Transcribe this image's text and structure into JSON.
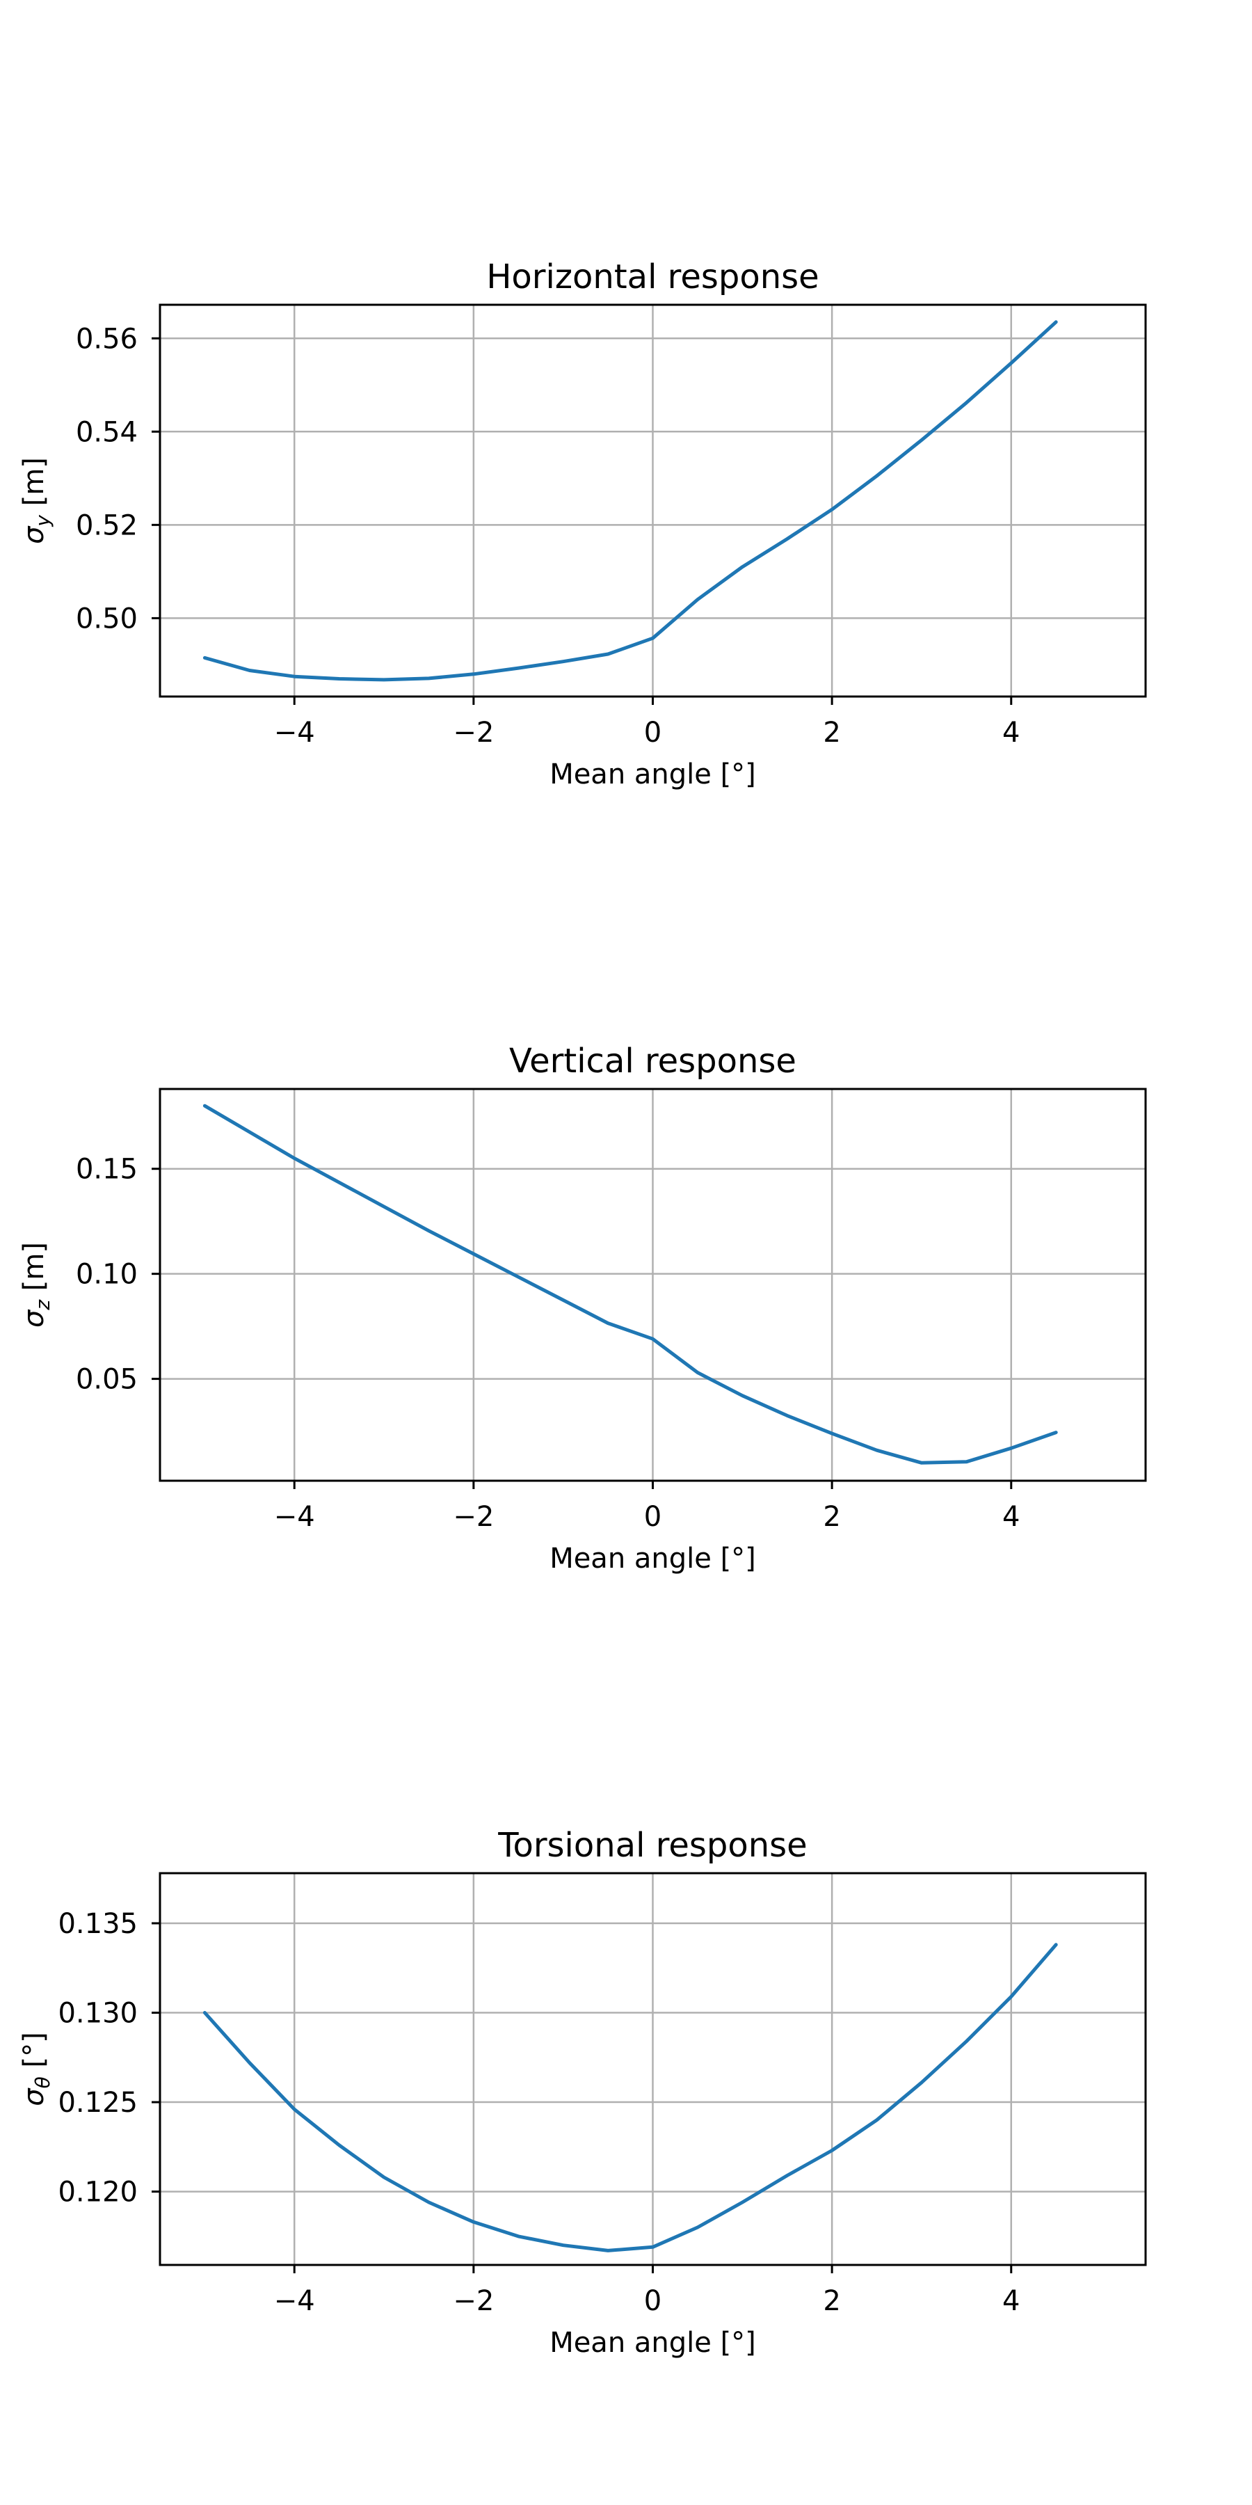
{
  "chart_data": [
    {
      "type": "line",
      "title": "Horizontal response",
      "xlabel": "Mean angle [°]",
      "ylabel": {
        "main": "σ",
        "sub": "y",
        "unit": " [m]"
      },
      "xlim": [
        -5.5,
        5.5
      ],
      "ylim": [
        0.4832,
        0.5672
      ],
      "xticks": [
        -4,
        -2,
        0,
        2,
        4
      ],
      "xtick_labels": [
        "−4",
        "−2",
        "0",
        "2",
        "4"
      ],
      "yticks": [
        0.5,
        0.52,
        0.54,
        0.56
      ],
      "ytick_labels": [
        "0.50",
        "0.52",
        "0.54",
        "0.56"
      ],
      "grid": true,
      "x": [
        -5,
        -4.5,
        -4,
        -3.5,
        -3,
        -2.5,
        -2,
        -1.5,
        -1,
        -0.5,
        0,
        0.5,
        1,
        1.5,
        2,
        2.5,
        3,
        3.5,
        4,
        4.5
      ],
      "y": [
        0.4915,
        0.4888,
        0.4875,
        0.487,
        0.4868,
        0.4871,
        0.488,
        0.4893,
        0.4907,
        0.4923,
        0.4957,
        0.504,
        0.511,
        0.517,
        0.5233,
        0.5305,
        0.5382,
        0.5462,
        0.5547,
        0.5635
      ],
      "color": "#1f77b4"
    },
    {
      "type": "line",
      "title": "Vertical response",
      "xlabel": "Mean angle [°]",
      "ylabel": {
        "main": "σ",
        "sub": "z",
        "unit": " [m]"
      },
      "xlim": [
        -5.5,
        5.5
      ],
      "ylim": [
        0.0015,
        0.188
      ],
      "xticks": [
        -4,
        -2,
        0,
        2,
        4
      ],
      "xtick_labels": [
        "−4",
        "−2",
        "0",
        "2",
        "4"
      ],
      "yticks": [
        0.05,
        0.1,
        0.15
      ],
      "ytick_labels": [
        "0.05",
        "0.10",
        "0.15"
      ],
      "grid": true,
      "x": [
        -5,
        -4.5,
        -4,
        -3.5,
        -3,
        -2.5,
        -2,
        -1.5,
        -1,
        -0.5,
        0,
        0.5,
        1,
        1.5,
        2,
        2.5,
        3,
        3.5,
        4,
        4.5
      ],
      "y": [
        0.18,
        0.1675,
        0.155,
        0.1435,
        0.132,
        0.1205,
        0.1095,
        0.0985,
        0.0875,
        0.0765,
        0.069,
        0.053,
        0.042,
        0.0325,
        0.024,
        0.016,
        0.01,
        0.0105,
        0.017,
        0.0245
      ],
      "color": "#1f77b4"
    },
    {
      "type": "line",
      "title": "Torsional response",
      "xlabel": "Mean angle [°]",
      "ylabel": {
        "main": "σ",
        "sub": "θ",
        "unit": " [°]"
      },
      "xlim": [
        -5.5,
        5.5
      ],
      "ylim": [
        0.1159,
        0.1378
      ],
      "xticks": [
        -4,
        -2,
        0,
        2,
        4
      ],
      "xtick_labels": [
        "−4",
        "−2",
        "0",
        "2",
        "4"
      ],
      "yticks": [
        0.12,
        0.125,
        0.13,
        0.135
      ],
      "ytick_labels": [
        "0.120",
        "0.125",
        "0.130",
        "0.135"
      ],
      "grid": true,
      "x": [
        -5,
        -4.5,
        -4,
        -3.5,
        -3,
        -2.5,
        -2,
        -1.5,
        -1,
        -0.5,
        0,
        0.5,
        1,
        1.5,
        2,
        2.5,
        3,
        3.5,
        4,
        4.5
      ],
      "y": [
        0.13,
        0.1272,
        0.1246,
        0.1226,
        0.1208,
        0.1194,
        0.1183,
        0.1175,
        0.117,
        0.1167,
        0.1169,
        0.118,
        0.1194,
        0.1209,
        0.1223,
        0.124,
        0.1261,
        0.1284,
        0.1309,
        0.1338
      ],
      "color": "#1f77b4"
    }
  ]
}
